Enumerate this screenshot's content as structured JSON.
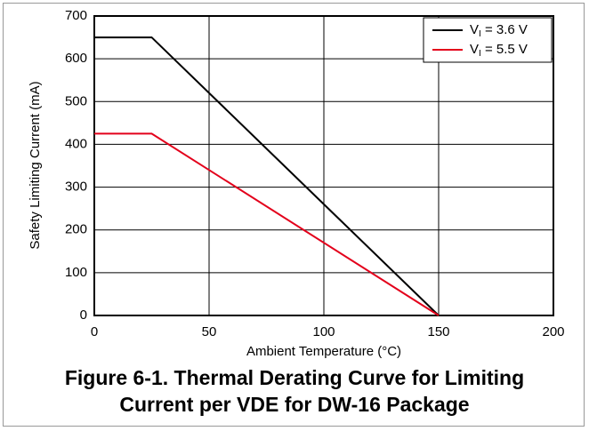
{
  "chart_data": {
    "type": "line",
    "title": "Figure 6-1. Thermal Derating Curve for Limiting Current per VDE for DW-16 Package",
    "xlabel": "Ambient Temperature (°C)",
    "ylabel": "Safety Limiting Current (mA)",
    "x": [
      0,
      25,
      150
    ],
    "series": [
      {
        "name": "VI = 3.6 V",
        "color": "#000000",
        "values": [
          650,
          650,
          0
        ]
      },
      {
        "name": "VI = 5.5 V",
        "color": "#e3001b",
        "values": [
          425,
          425,
          0
        ]
      }
    ],
    "xlim": [
      0,
      200
    ],
    "xticks": [
      0,
      50,
      100,
      150,
      200
    ],
    "ylim": [
      0,
      700
    ],
    "yticks": [
      0,
      100,
      200,
      300,
      400,
      500,
      600,
      700
    ],
    "grid": true,
    "legend": "upper right"
  }
}
